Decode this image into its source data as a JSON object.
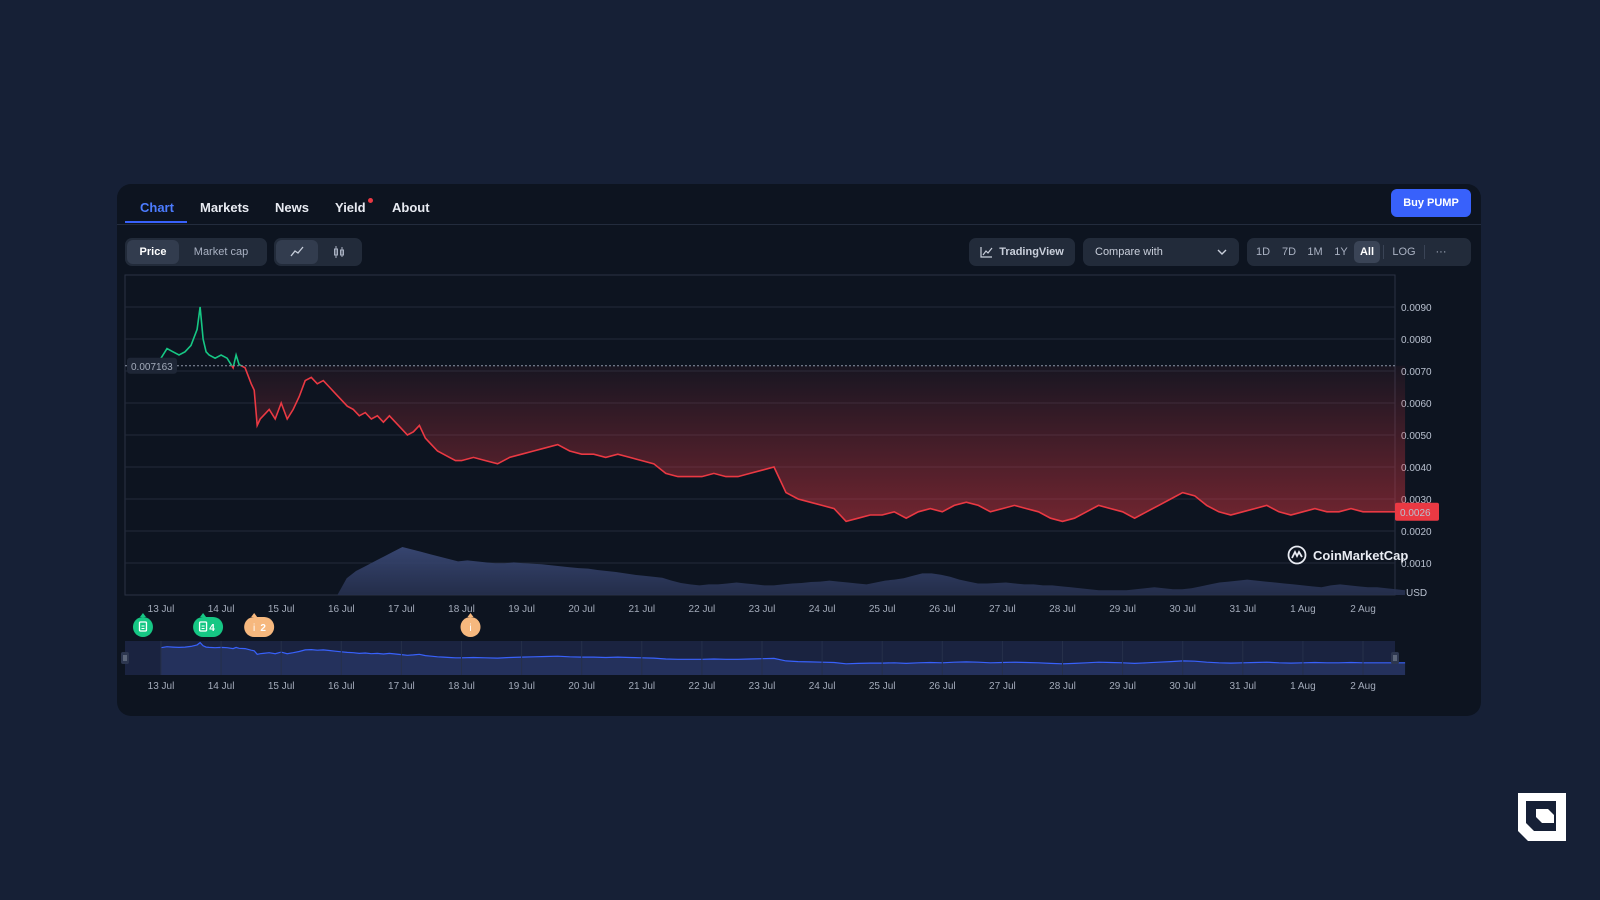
{
  "tabs": [
    {
      "label": "Chart",
      "active": true
    },
    {
      "label": "Markets"
    },
    {
      "label": "News"
    },
    {
      "label": "Yield",
      "dot": true
    },
    {
      "label": "About"
    }
  ],
  "buy_button": "Buy PUMP",
  "toolbar": {
    "metric": [
      "Price",
      "Market cap"
    ],
    "metric_selected": "Price",
    "chart_types": [
      "line-chart-icon",
      "candlestick-icon"
    ],
    "tradingview": "TradingView",
    "compare_placeholder": "Compare with",
    "ranges": [
      "1D",
      "7D",
      "1M",
      "1Y",
      "All"
    ],
    "range_selected": "All",
    "log_label": "LOG",
    "more_label": "···"
  },
  "chart_data": {
    "type": "line",
    "currency": "USD",
    "x_labels": [
      "13 Jul",
      "14 Jul",
      "15 Jul",
      "16 Jul",
      "17 Jul",
      "18 Jul",
      "19 Jul",
      "20 Jul",
      "21 Jul",
      "22 Jul",
      "23 Jul",
      "24 Jul",
      "25 Jul",
      "26 Jul",
      "27 Jul",
      "28 Jul",
      "29 Jul",
      "30 Jul",
      "31 Jul",
      "1 Aug",
      "2 Aug"
    ],
    "y_ticks": [
      "0.0090",
      "0.0080",
      "0.0070",
      "0.0060",
      "0.0050",
      "0.0040",
      "0.0030",
      "0.0020",
      "0.0010"
    ],
    "ylim": [
      0.0,
      0.01
    ],
    "baseline_value": 0.007163,
    "baseline_label": "0.007163",
    "current_price": 0.0026,
    "current_label": "0.0026",
    "up_color": "#16c784",
    "down_color": "#ea3943",
    "series": [
      {
        "x_day": [
          0.0,
          0.1,
          0.2,
          0.3,
          0.4,
          0.5,
          0.6,
          0.65,
          0.7,
          0.75,
          0.8,
          0.9,
          1.0,
          1.1,
          1.2,
          1.25,
          1.3,
          1.4,
          1.5,
          1.55,
          1.6,
          1.65,
          1.7,
          1.8,
          1.9,
          2.0,
          2.1,
          2.2,
          2.3,
          2.4,
          2.5,
          2.6,
          2.7,
          2.8,
          2.9,
          3.0,
          3.1,
          3.2,
          3.3,
          3.4,
          3.5,
          3.6,
          3.7,
          3.8,
          3.9,
          4.0,
          4.1,
          4.2,
          4.3,
          4.4,
          4.5,
          4.6,
          4.7,
          4.8,
          4.9,
          5.0,
          5.2,
          5.4,
          5.6,
          5.8,
          6.0,
          6.2,
          6.4,
          6.6,
          6.8,
          7.0,
          7.2,
          7.4,
          7.6,
          7.8,
          8.0,
          8.2,
          8.4,
          8.6,
          8.8,
          9.0,
          9.2,
          9.4,
          9.6,
          9.8,
          10.0,
          10.2,
          10.4,
          10.6,
          10.8,
          11.0,
          11.2,
          11.4,
          11.6,
          11.8,
          12.0,
          12.2,
          12.4,
          12.6,
          12.8,
          13.0,
          13.2,
          13.4,
          13.6,
          13.8,
          14.0,
          14.2,
          14.4,
          14.6,
          14.8,
          15.0,
          15.2,
          15.4,
          15.6,
          15.8,
          16.0,
          16.2,
          16.4,
          16.6,
          16.8,
          17.0,
          17.2,
          17.4,
          17.6,
          17.8,
          18.0,
          18.2,
          18.4,
          18.6,
          18.8,
          19.0,
          19.2,
          19.4,
          19.6,
          19.8,
          20.0,
          20.2,
          20.4,
          20.6,
          20.7
        ],
        "price": [
          0.0074,
          0.0077,
          0.0076,
          0.0075,
          0.0076,
          0.0078,
          0.0083,
          0.009,
          0.008,
          0.0076,
          0.0075,
          0.0074,
          0.0075,
          0.0074,
          0.0071,
          0.0075,
          0.0072,
          0.0071,
          0.0066,
          0.0064,
          0.0053,
          0.0055,
          0.0056,
          0.0058,
          0.0055,
          0.006,
          0.0055,
          0.0058,
          0.0062,
          0.0067,
          0.0068,
          0.0066,
          0.0067,
          0.0065,
          0.0063,
          0.0061,
          0.0059,
          0.0058,
          0.0056,
          0.0057,
          0.0055,
          0.0056,
          0.0054,
          0.0056,
          0.0054,
          0.0052,
          0.005,
          0.0051,
          0.0053,
          0.0049,
          0.0047,
          0.0045,
          0.0044,
          0.0043,
          0.0042,
          0.0042,
          0.0043,
          0.0042,
          0.0041,
          0.0043,
          0.0044,
          0.0045,
          0.0046,
          0.0047,
          0.0045,
          0.0044,
          0.0044,
          0.0043,
          0.0044,
          0.0043,
          0.0042,
          0.0041,
          0.0038,
          0.0037,
          0.0037,
          0.0037,
          0.0038,
          0.0037,
          0.0037,
          0.0038,
          0.0039,
          0.004,
          0.0032,
          0.003,
          0.0029,
          0.0028,
          0.0027,
          0.0023,
          0.0024,
          0.0025,
          0.0025,
          0.0026,
          0.0024,
          0.0026,
          0.0027,
          0.0026,
          0.0028,
          0.0029,
          0.0028,
          0.0026,
          0.0027,
          0.0028,
          0.0027,
          0.0026,
          0.0024,
          0.0023,
          0.0024,
          0.0026,
          0.0028,
          0.0027,
          0.0026,
          0.0024,
          0.0026,
          0.0028,
          0.003,
          0.0032,
          0.0031,
          0.0028,
          0.0026,
          0.0025,
          0.0026,
          0.0027,
          0.0028,
          0.0026,
          0.0025,
          0.0026,
          0.0027,
          0.0026,
          0.0026,
          0.0027,
          0.0026,
          0.0026,
          0.0026,
          0.0026,
          0.0026
        ]
      }
    ],
    "volume": [
      0,
      0,
      0,
      0,
      0,
      0,
      0,
      0,
      0,
      0,
      0,
      0,
      0,
      0,
      0,
      0,
      0,
      0,
      0,
      0,
      0.35,
      0.5,
      0.6,
      0.7,
      0.8,
      0.9,
      1.0,
      0.95,
      0.9,
      0.85,
      0.8,
      0.75,
      0.7,
      0.72,
      0.7,
      0.68,
      0.66,
      0.66,
      0.68,
      0.66,
      0.65,
      0.64,
      0.62,
      0.6,
      0.58,
      0.56,
      0.55,
      0.52,
      0.5,
      0.48,
      0.45,
      0.42,
      0.4,
      0.38,
      0.36,
      0.3,
      0.25,
      0.22,
      0.2,
      0.22,
      0.22,
      0.24,
      0.26,
      0.24,
      0.22,
      0.2,
      0.2,
      0.22,
      0.24,
      0.25,
      0.27,
      0.28,
      0.3,
      0.28,
      0.26,
      0.24,
      0.22,
      0.26,
      0.3,
      0.32,
      0.35,
      0.4,
      0.45,
      0.45,
      0.42,
      0.38,
      0.32,
      0.28,
      0.24,
      0.24,
      0.25,
      0.26,
      0.24,
      0.22,
      0.22,
      0.2,
      0.2,
      0.18,
      0.16,
      0.14,
      0.12,
      0.1,
      0.1,
      0.1,
      0.1,
      0.12,
      0.14,
      0.16,
      0.14,
      0.12,
      0.12,
      0.14,
      0.18,
      0.22,
      0.26,
      0.28,
      0.3,
      0.32,
      0.3,
      0.28,
      0.26,
      0.24,
      0.22,
      0.2,
      0.18,
      0.16,
      0.2,
      0.22,
      0.2,
      0.18,
      0.16,
      0.16,
      0.14,
      0.12,
      0.1
    ]
  },
  "events": [
    {
      "day": -0.3,
      "kind": "document",
      "label": ""
    },
    {
      "day": 0.7,
      "kind": "document",
      "label": "4"
    },
    {
      "day": 1.55,
      "kind": "info",
      "label": "2"
    },
    {
      "day": 5.15,
      "kind": "info",
      "label": ""
    }
  ],
  "watermark": "CoinMarketCap"
}
